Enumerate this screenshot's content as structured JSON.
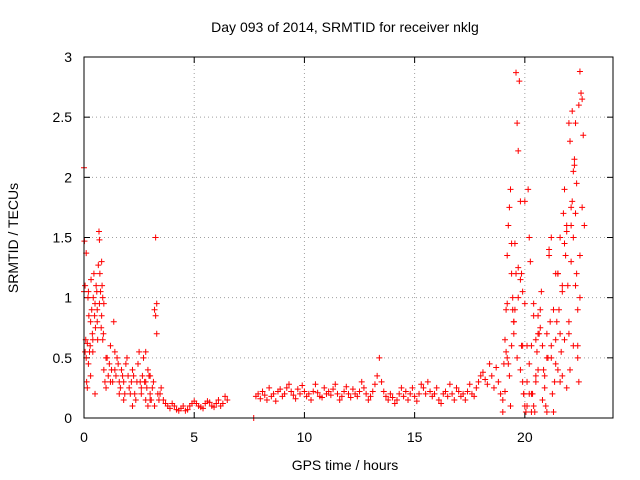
{
  "chart_data": {
    "type": "scatter",
    "title": "Day 093 of 2014, SRMTID for receiver nklg",
    "xlabel": "GPS time / hours",
    "ylabel": "SRMTID / TECUs",
    "xlim": [
      0,
      24
    ],
    "ylim": [
      0,
      3
    ],
    "xticks": [
      0,
      5,
      10,
      15,
      20
    ],
    "xtick_labels": [
      "0",
      "5",
      "10",
      "15",
      "20"
    ],
    "yticks": [
      0,
      0.5,
      1,
      1.5,
      2,
      2.5,
      3
    ],
    "ytick_labels": [
      "0",
      "0.5",
      "1",
      "1.5",
      "2",
      "2.5",
      "3"
    ],
    "grid": true,
    "series": [
      {
        "name": "SRMTID",
        "color": "#ff0000",
        "marker": "+",
        "x": [
          0.0,
          0.02,
          0.05,
          0.08,
          0.1,
          0.12,
          0.15,
          0.18,
          0.2,
          0.22,
          0.25,
          0.28,
          0.3,
          0.32,
          0.35,
          0.38,
          0.4,
          0.42,
          0.45,
          0.48,
          0.5,
          0.52,
          0.55,
          0.58,
          0.6,
          0.62,
          0.65,
          0.68,
          0.7,
          0.72,
          0.75,
          0.78,
          0.8,
          0.82,
          0.85,
          0.88,
          0.9,
          0.95,
          1.0,
          1.05,
          1.1,
          1.15,
          1.2,
          1.25,
          1.3,
          1.35,
          1.4,
          1.45,
          1.5,
          1.55,
          1.6,
          1.65,
          1.7,
          1.75,
          1.8,
          1.85,
          1.9,
          1.95,
          2.0,
          2.05,
          2.1,
          2.15,
          2.2,
          2.25,
          2.3,
          2.35,
          2.4,
          2.45,
          2.5,
          2.55,
          2.6,
          2.65,
          2.7,
          2.75,
          2.8,
          2.85,
          2.9,
          2.95,
          3.0,
          3.05,
          3.1,
          3.15,
          3.2,
          3.25,
          3.3,
          3.35,
          3.4,
          3.45,
          3.5,
          3.6,
          3.7,
          3.8,
          3.9,
          4.0,
          4.1,
          4.2,
          4.3,
          4.4,
          4.5,
          4.6,
          4.7,
          4.8,
          4.9,
          5.0,
          5.1,
          5.2,
          5.3,
          5.4,
          5.5,
          5.6,
          5.7,
          5.8,
          5.9,
          6.0,
          6.1,
          6.2,
          6.3,
          6.4,
          6.5,
          7.7,
          7.8,
          7.9,
          8.0,
          8.1,
          8.2,
          8.3,
          8.4,
          8.5,
          8.6,
          8.7,
          8.8,
          8.9,
          9.0,
          9.1,
          9.2,
          9.3,
          9.4,
          9.5,
          9.6,
          9.7,
          9.8,
          9.9,
          10.0,
          10.1,
          10.2,
          10.3,
          10.4,
          10.5,
          10.6,
          10.7,
          10.8,
          10.9,
          11.0,
          11.1,
          11.2,
          11.3,
          11.4,
          11.5,
          11.6,
          11.7,
          11.8,
          11.9,
          12.0,
          12.1,
          12.2,
          12.3,
          12.4,
          12.5,
          12.6,
          12.7,
          12.8,
          12.9,
          13.0,
          13.1,
          13.2,
          13.3,
          13.4,
          13.5,
          13.6,
          13.7,
          13.8,
          13.9,
          14.0,
          14.1,
          14.2,
          14.3,
          14.4,
          14.5,
          14.6,
          14.7,
          14.8,
          14.9,
          15.0,
          15.1,
          15.2,
          15.3,
          15.4,
          15.5,
          15.6,
          15.7,
          15.8,
          15.9,
          16.0,
          16.1,
          16.2,
          16.3,
          16.4,
          16.5,
          16.6,
          16.7,
          16.8,
          16.9,
          17.0,
          17.1,
          17.2,
          17.3,
          17.4,
          17.5,
          17.6,
          17.7,
          17.8,
          17.9,
          18.0,
          18.1,
          18.2,
          18.3,
          18.4,
          18.5,
          18.6,
          18.7,
          18.8,
          18.9,
          19.0,
          19.05,
          19.1,
          19.15,
          19.2,
          19.25,
          19.3,
          19.35,
          19.4,
          19.45,
          19.5,
          19.55,
          19.6,
          19.65,
          19.7,
          19.75,
          19.8,
          19.85,
          19.9,
          19.95,
          20.0,
          20.05,
          20.1,
          20.15,
          20.2,
          20.25,
          20.3,
          20.35,
          20.4,
          20.45,
          20.5,
          20.55,
          20.6,
          20.65,
          20.7,
          20.75,
          20.8,
          20.85,
          20.9,
          20.95,
          21.0,
          21.05,
          21.1,
          21.15,
          21.2,
          21.25,
          21.3,
          21.35,
          21.4,
          21.45,
          21.5,
          21.55,
          21.6,
          21.65,
          21.7,
          21.75,
          21.8,
          21.85,
          21.9,
          21.95,
          22.0,
          22.05,
          22.1,
          22.15,
          22.2,
          22.25,
          22.3,
          22.35,
          22.4,
          22.45,
          22.5,
          22.55,
          22.6,
          22.65,
          22.7,
          0.0,
          0.05,
          0.1,
          0.15,
          0.2,
          0.3,
          0.4,
          0.5,
          0.6,
          0.7,
          0.8,
          0.85,
          0.9,
          1.0,
          1.2,
          1.4,
          1.6,
          1.8,
          2.2,
          2.6,
          2.8,
          3.0,
          3.2,
          3.25,
          3.3,
          19.0,
          19.1,
          19.2,
          19.3,
          19.4,
          19.5,
          19.6,
          19.7,
          19.8,
          19.9,
          20.0,
          20.1,
          20.2,
          20.3,
          20.4,
          20.5,
          20.6,
          20.7,
          20.8,
          20.9,
          21.0,
          21.1,
          21.2,
          21.3,
          21.4,
          21.5,
          21.6,
          21.7,
          21.8,
          21.9,
          22.0,
          22.1,
          22.2,
          22.3,
          22.4,
          22.5,
          22.6,
          19.15,
          19.2,
          19.25,
          19.35,
          19.4,
          19.45,
          19.5,
          19.55,
          19.65,
          19.7,
          19.8,
          19.85,
          19.9,
          19.95,
          20.0,
          20.1,
          20.2,
          20.3,
          20.4,
          20.5,
          20.6,
          21.0,
          21.2,
          21.4,
          21.5,
          21.6,
          21.7,
          21.8,
          21.9,
          22.0,
          22.05,
          22.1,
          22.15,
          22.2,
          22.25,
          22.3,
          22.35,
          22.4,
          22.45,
          22.5,
          2.8,
          2.9,
          3.0
        ],
        "y": [
          2.08,
          1.47,
          1.1,
          0.65,
          0.5,
          0.3,
          0.62,
          1.0,
          1.05,
          0.85,
          0.55,
          0.6,
          0.8,
          1.15,
          0.9,
          0.7,
          0.65,
          1.0,
          1.2,
          0.85,
          0.95,
          0.75,
          1.1,
          1.05,
          0.9,
          0.65,
          1.27,
          1.55,
          1.48,
          1.2,
          1.05,
          0.75,
          0.85,
          1.1,
          1.0,
          0.7,
          0.4,
          0.3,
          0.25,
          0.5,
          0.35,
          0.45,
          0.6,
          0.4,
          0.3,
          0.8,
          0.55,
          0.35,
          0.5,
          0.45,
          0.3,
          0.25,
          0.4,
          0.35,
          0.3,
          0.2,
          0.45,
          0.5,
          0.35,
          0.25,
          0.2,
          0.3,
          0.4,
          0.35,
          0.2,
          0.15,
          0.3,
          0.45,
          0.55,
          0.3,
          0.25,
          0.35,
          0.5,
          0.3,
          0.15,
          0.25,
          0.4,
          0.35,
          0.2,
          0.15,
          0.25,
          0.3,
          0.9,
          0.85,
          0.7,
          0.2,
          0.15,
          0.2,
          0.25,
          0.15,
          0.12,
          0.1,
          0.08,
          0.12,
          0.1,
          0.07,
          0.06,
          0.08,
          0.1,
          0.06,
          0.07,
          0.1,
          0.12,
          0.14,
          0.12,
          0.1,
          0.09,
          0.08,
          0.12,
          0.14,
          0.13,
          0.1,
          0.09,
          0.12,
          0.15,
          0.1,
          0.12,
          0.18,
          0.15,
          0.0,
          0.18,
          0.2,
          0.16,
          0.22,
          0.19,
          0.15,
          0.25,
          0.18,
          0.2,
          0.14,
          0.22,
          0.24,
          0.18,
          0.2,
          0.25,
          0.28,
          0.22,
          0.19,
          0.16,
          0.24,
          0.2,
          0.27,
          0.22,
          0.18,
          0.2,
          0.15,
          0.22,
          0.28,
          0.21,
          0.18,
          0.17,
          0.25,
          0.2,
          0.22,
          0.19,
          0.24,
          0.28,
          0.2,
          0.15,
          0.18,
          0.22,
          0.26,
          0.2,
          0.17,
          0.24,
          0.2,
          0.18,
          0.22,
          0.3,
          0.25,
          0.2,
          0.15,
          0.18,
          0.22,
          0.28,
          0.35,
          0.5,
          0.3,
          0.22,
          0.18,
          0.15,
          0.2,
          0.17,
          0.12,
          0.15,
          0.2,
          0.25,
          0.18,
          0.22,
          0.15,
          0.2,
          0.25,
          0.18,
          0.14,
          0.2,
          0.28,
          0.25,
          0.2,
          0.3,
          0.22,
          0.18,
          0.2,
          0.25,
          0.15,
          0.12,
          0.2,
          0.22,
          0.18,
          0.28,
          0.2,
          0.15,
          0.25,
          0.22,
          0.18,
          0.2,
          0.15,
          0.22,
          0.28,
          0.2,
          0.18,
          0.25,
          0.3,
          0.35,
          0.38,
          0.32,
          0.28,
          0.45,
          0.35,
          0.25,
          0.42,
          0.3,
          0.2,
          0.15,
          0.45,
          0.65,
          0.9,
          1.35,
          1.6,
          1.75,
          1.9,
          1.2,
          0.9,
          0.7,
          1.45,
          2.87,
          2.45,
          2.22,
          2.8,
          1.8,
          1.2,
          0.6,
          0.2,
          0.1,
          0.05,
          0.3,
          1.9,
          1.5,
          1.3,
          0.6,
          0.2,
          0.1,
          0.05,
          0.35,
          0.55,
          0.85,
          0.7,
          0.9,
          1.05,
          0.6,
          0.4,
          0.25,
          0.1,
          0.7,
          0.5,
          1.4,
          0.8,
          0.5,
          0.2,
          0.05,
          0.3,
          0.65,
          0.8,
          1.2,
          0.9,
          1.5,
          0.55,
          0.35,
          1.7,
          1.9,
          1.35,
          1.6,
          1.1,
          0.7,
          0.4,
          1.3,
          1.8,
          2.05,
          2.1,
          1.7,
          1.2,
          0.9,
          0.3,
          2.88,
          2.7,
          2.65,
          2.35,
          1.6,
          1.05,
          0.55,
          1.37,
          0.25,
          0.45,
          0.35,
          0.55,
          0.2,
          0.8,
          0.95,
          1.3,
          0.65,
          0.95,
          0.5,
          0.3,
          0.4,
          0.2,
          0.15,
          0.1,
          0.2,
          0.3,
          0.15,
          0.1,
          1.5,
          0.95,
          0.05,
          0.22,
          0.5,
          0.35,
          0.6,
          0.8,
          1.2,
          1.0,
          1.15,
          0.3,
          0.95,
          0.1,
          0.45,
          0.2,
          0.85,
          0.65,
          0.4,
          0.75,
          0.15,
          0.35,
          0.5,
          1.35,
          1.5,
          0.9,
          1.2,
          0.4,
          0.7,
          1.1,
          1.45,
          0.25,
          0.8,
          1.6,
          0.6,
          1.1,
          0.5,
          1.0,
          1.75,
          0.55,
          0.95,
          0.45,
          0.1,
          1.45,
          1.0,
          0.8,
          0.9,
          0.5,
          1.25,
          0.4,
          0.6,
          1.05,
          0.2,
          1.8,
          0.6,
          0.2,
          0.05,
          0.95,
          0.3,
          0.7,
          0.05,
          0.6,
          0.45,
          1.2,
          0.3,
          1.05,
          0.65,
          1.55,
          2.45,
          2.3,
          1.75,
          2.55,
          1.5,
          2.15,
          2.45,
          1.95,
          0.6,
          2.6,
          1.35,
          0.55,
          0.1,
          0.35
        ]
      }
    ]
  }
}
